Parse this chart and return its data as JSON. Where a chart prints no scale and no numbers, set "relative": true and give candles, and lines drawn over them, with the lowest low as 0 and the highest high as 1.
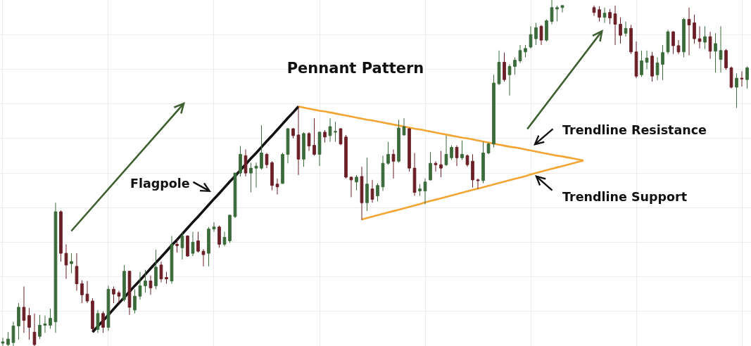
{
  "chart_data": {
    "type": "candlestick",
    "title": "Pennant Pattern",
    "annotations": [
      "Flagpole",
      "Trendline Resistance",
      "Trendline Support"
    ],
    "relative": true,
    "grid": true,
    "categories": [
      null,
      null,
      null,
      null,
      null,
      null,
      null,
      null,
      null,
      null,
      null,
      null,
      null,
      null,
      null,
      null,
      null,
      null,
      null,
      null,
      null,
      null,
      null,
      null,
      null,
      null,
      null,
      null,
      null,
      null,
      null,
      null,
      null,
      null,
      null,
      null,
      null,
      null,
      null,
      null,
      null,
      null,
      null,
      null,
      null,
      null,
      null,
      null,
      null,
      null,
      null,
      null,
      null,
      null,
      null,
      null,
      null,
      null,
      null,
      null,
      null,
      null,
      null,
      null,
      null,
      null,
      null,
      null,
      null,
      null,
      null,
      null,
      null,
      null,
      null,
      null,
      null,
      null,
      null,
      null,
      null,
      null,
      null,
      null,
      null,
      null,
      null,
      null,
      null,
      null,
      null,
      null,
      null,
      null,
      null,
      null,
      null,
      null,
      null,
      null,
      null,
      null,
      null,
      null,
      null,
      null,
      null,
      null,
      null,
      null,
      null,
      null,
      null,
      null,
      null,
      null,
      null,
      null,
      null,
      null,
      null,
      null,
      null,
      null,
      null,
      null,
      null,
      null,
      null,
      null,
      null,
      null,
      null,
      null,
      null,
      null,
      null,
      null,
      null,
      null,
      null,
      null
    ],
    "ohlc": [
      [
        0.008,
        0.024,
        0,
        0.012
      ],
      [
        0.004,
        0.04,
        0,
        0.02
      ],
      [
        0.01,
        0.07,
        0,
        0.058
      ],
      [
        0.058,
        0.124,
        0.018,
        0.112
      ],
      [
        0.112,
        0.172,
        0.038,
        0.074
      ],
      [
        0.088,
        0.11,
        0.018,
        0.054
      ],
      [
        0.04,
        0.094,
        0,
        0.004
      ],
      [
        0.028,
        0.09,
        0.02,
        0.06
      ],
      [
        0.06,
        0.088,
        0.038,
        0.064
      ],
      [
        0.06,
        0.108,
        0.05,
        0.08
      ],
      [
        0.07,
        0.414,
        0.038,
        0.388
      ],
      [
        0.388,
        0.392,
        0.244,
        0.268
      ],
      [
        0.268,
        0.294,
        0.194,
        0.234
      ],
      [
        0.238,
        0.268,
        0.21,
        0.244
      ],
      [
        0.23,
        0.268,
        0.16,
        0.18
      ],
      [
        0.18,
        0.19,
        0.124,
        0.148
      ],
      [
        0.15,
        0.188,
        0.124,
        0.13
      ],
      [
        0.13,
        0.138,
        0.044,
        0.05
      ],
      [
        0.048,
        0.104,
        0.038,
        0.094
      ],
      [
        0.094,
        0.1,
        0.038,
        0.054
      ],
      [
        0.054,
        0.174,
        0.044,
        0.164
      ],
      [
        0.164,
        0.172,
        0.124,
        0.15
      ],
      [
        0.154,
        0.16,
        0.124,
        0.144
      ],
      [
        0.134,
        0.234,
        0.128,
        0.216
      ],
      [
        0.216,
        0.218,
        0.09,
        0.112
      ],
      [
        0.104,
        0.164,
        0.094,
        0.144
      ],
      [
        0.144,
        0.214,
        0.134,
        0.174
      ],
      [
        0.174,
        0.22,
        0.154,
        0.188
      ],
      [
        0.188,
        0.204,
        0.148,
        0.168
      ],
      [
        0.174,
        0.278,
        0.164,
        0.228
      ],
      [
        0.234,
        0.244,
        0.184,
        0.194
      ],
      [
        0.198,
        0.214,
        0.18,
        0.194
      ],
      [
        0.188,
        0.318,
        0.18,
        0.294
      ],
      [
        0.294,
        0.31,
        0.27,
        0.29
      ],
      [
        0.284,
        0.328,
        0.25,
        0.318
      ],
      [
        0.318,
        0.32,
        0.258,
        0.26
      ],
      [
        0.268,
        0.33,
        0.26,
        0.3
      ],
      [
        0.304,
        0.33,
        0.27,
        0.274
      ],
      [
        0.274,
        0.28,
        0.23,
        0.264
      ],
      [
        0.268,
        0.344,
        0.23,
        0.338
      ],
      [
        0.338,
        0.358,
        0.33,
        0.344
      ],
      [
        0.344,
        0.348,
        0.284,
        0.294
      ],
      [
        0.294,
        0.33,
        0.288,
        0.314
      ],
      [
        0.304,
        0.38,
        0.298,
        0.378
      ],
      [
        0.374,
        0.5,
        0.37,
        0.5
      ],
      [
        0.5,
        0.578,
        0.49,
        0.554
      ],
      [
        0.55,
        0.568,
        0.49,
        0.5
      ],
      [
        0.5,
        0.53,
        0.444,
        0.514
      ],
      [
        0.514,
        0.53,
        0.458,
        0.52
      ],
      [
        0.514,
        0.638,
        0.51,
        0.558
      ],
      [
        0.554,
        0.558,
        0.514,
        0.524
      ],
      [
        0.53,
        0.534,
        0.45,
        0.464
      ],
      [
        0.468,
        0.484,
        0.438,
        0.46
      ],
      [
        0.47,
        0.558,
        0.468,
        0.554
      ],
      [
        0.554,
        0.63,
        0.528,
        0.628
      ],
      [
        0.628,
        0.63,
        0.6,
        0.608
      ],
      [
        0.61,
        0.694,
        0.494,
        0.54
      ],
      [
        0.54,
        0.618,
        0.518,
        0.614
      ],
      [
        0.614,
        0.618,
        0.564,
        0.578
      ],
      [
        0.58,
        0.658,
        0.55,
        0.554
      ],
      [
        0.554,
        0.62,
        0.52,
        0.618
      ],
      [
        0.618,
        0.624,
        0.588,
        0.604
      ],
      [
        0.608,
        0.658,
        0.59,
        0.634
      ],
      [
        0.618,
        0.648,
        0.59,
        0.62
      ],
      [
        0.628,
        0.63,
        0.58,
        0.584
      ],
      [
        0.604,
        0.61,
        0.484,
        0.488
      ],
      [
        0.488,
        0.49,
        0.43,
        0.48
      ],
      [
        0.474,
        0.494,
        0.45,
        0.488
      ],
      [
        0.49,
        0.518,
        0.364,
        0.414
      ],
      [
        0.414,
        0.544,
        0.39,
        0.468
      ],
      [
        0.454,
        0.48,
        0.414,
        0.424
      ],
      [
        0.434,
        0.47,
        0.418,
        0.464
      ],
      [
        0.46,
        0.55,
        0.448,
        0.528
      ],
      [
        0.528,
        0.59,
        0.524,
        0.554
      ],
      [
        0.554,
        0.568,
        0.484,
        0.534
      ],
      [
        0.534,
        0.654,
        0.53,
        0.63
      ],
      [
        0.61,
        0.658,
        0.608,
        0.634
      ],
      [
        0.628,
        0.63,
        0.504,
        0.514
      ],
      [
        0.514,
        0.558,
        0.434,
        0.444
      ],
      [
        0.448,
        0.468,
        0.434,
        0.454
      ],
      [
        0.448,
        0.484,
        0.41,
        0.474
      ],
      [
        0.48,
        0.56,
        0.478,
        0.528
      ],
      [
        0.528,
        0.534,
        0.504,
        0.524
      ],
      [
        0.524,
        0.564,
        0.488,
        0.514
      ],
      [
        0.524,
        0.608,
        0.52,
        0.554
      ],
      [
        0.544,
        0.58,
        0.538,
        0.574
      ],
      [
        0.574,
        0.58,
        0.52,
        0.544
      ],
      [
        0.544,
        0.594,
        0.538,
        0.554
      ],
      [
        0.55,
        0.554,
        0.518,
        0.524
      ],
      [
        0.534,
        0.554,
        0.458,
        0.48
      ],
      [
        0.48,
        0.484,
        0.454,
        0.478
      ],
      [
        0.478,
        0.59,
        0.47,
        0.558
      ],
      [
        0.558,
        0.588,
        0.554,
        0.584
      ],
      [
        0.584,
        0.784,
        0.574,
        0.76
      ],
      [
        0.758,
        0.854,
        0.754,
        0.82
      ],
      [
        0.82,
        0.848,
        0.764,
        0.77
      ],
      [
        0.784,
        0.814,
        0.724,
        0.808
      ],
      [
        0.808,
        0.834,
        0.784,
        0.826
      ],
      [
        0.824,
        0.87,
        0.818,
        0.854
      ],
      [
        0.85,
        0.87,
        0.834,
        0.86
      ],
      [
        0.864,
        0.924,
        0.86,
        0.9
      ],
      [
        0.888,
        0.934,
        0.87,
        0.92
      ],
      [
        0.924,
        0.928,
        0.87,
        0.884
      ],
      [
        0.884,
        0.944,
        0.88,
        0.94
      ],
      [
        0.938,
        1,
        0.93,
        0.978
      ],
      [
        0.974,
        0.984,
        0.938,
        0.978
      ],
      [
        0.978,
        0.984,
        0.964,
        0.984
      ],
      null,
      null,
      null,
      null,
      null,
      [
        0.978,
        0.984,
        0.954,
        0.964
      ],
      [
        0.972,
        0.982,
        0.938,
        0.95
      ],
      [
        0.95,
        0.978,
        0.934,
        0.962
      ],
      [
        0.964,
        0.974,
        0.93,
        0.948
      ],
      [
        0.96,
        0.984,
        0.87,
        0.93
      ],
      [
        0.93,
        0.95,
        0.874,
        0.898
      ],
      [
        0.904,
        0.938,
        0.894,
        0.918
      ],
      [
        0.918,
        0.928,
        0.844,
        0.85
      ],
      [
        0.85,
        0.88,
        0.774,
        0.78
      ],
      [
        0.784,
        0.854,
        0.778,
        0.824
      ],
      [
        0.82,
        0.854,
        0.8,
        0.832
      ],
      [
        0.838,
        0.85,
        0.764,
        0.78
      ],
      [
        0.784,
        0.834,
        0.768,
        0.818
      ],
      [
        0.814,
        0.87,
        0.768,
        0.848
      ],
      [
        0.85,
        0.914,
        0.844,
        0.908
      ],
      [
        0.908,
        0.91,
        0.844,
        0.868
      ],
      [
        0.868,
        0.884,
        0.844,
        0.85
      ],
      [
        0.85,
        0.948,
        0.834,
        0.944
      ],
      [
        0.944,
        0.978,
        0.84,
        0.928
      ],
      [
        0.934,
        0.958,
        0.874,
        0.888
      ],
      [
        0.888,
        0.924,
        0.86,
        0.88
      ],
      [
        0.878,
        0.924,
        0.858,
        0.894
      ],
      [
        0.894,
        0.908,
        0.83,
        0.852
      ],
      [
        0.852,
        0.904,
        0.79,
        0.874
      ],
      [
        0.828,
        0.924,
        0.79,
        0.854
      ],
      [
        0.854,
        0.858,
        0.798,
        0.804
      ],
      [
        0.804,
        0.808,
        0.744,
        0.748
      ],
      [
        0.748,
        0.788,
        0.688,
        0.774
      ],
      [
        0.774,
        0.794,
        0.75,
        0.772
      ],
      [
        0.77,
        0.808,
        0.744,
        0.804
      ]
    ],
    "colors": [
      "#3b6b3b",
      "#3b6b3b",
      "#3b6b3b",
      "#3b6b3b",
      "#6b1f26",
      "#6b1f26",
      "#6b1f26",
      "#3b6b3b",
      "#3b6b3b",
      "#3b6b3b",
      "#3b6b3b",
      "#6b1f26",
      "#6b1f26",
      "#3b6b3b",
      "#6b1f26",
      "#6b1f26",
      "#6b1f26",
      "#6b1f26",
      "#3b6b3b",
      "#6b1f26",
      "#3b6b3b",
      "#6b1f26",
      "#6b1f26",
      "#3b6b3b",
      "#6b1f26",
      "#3b6b3b",
      "#3b6b3b",
      "#3b6b3b",
      "#6b1f26",
      "#3b6b3b",
      "#6b1f26",
      "#6b1f26",
      "#3b6b3b",
      "#6b1f26",
      "#3b6b3b",
      "#6b1f26",
      "#3b6b3b",
      "#6b1f26",
      "#6b1f26",
      "#3b6b3b",
      "#3b6b3b",
      "#6b1f26",
      "#3b6b3b",
      "#3b6b3b",
      "#3b6b3b",
      "#3b6b3b",
      "#6b1f26",
      "#3b6b3b",
      "#3b6b3b",
      "#3b6b3b",
      "#6b1f26",
      "#6b1f26",
      "#6b1f26",
      "#3b6b3b",
      "#3b6b3b",
      "#6b1f26",
      "#6b1f26",
      "#3b6b3b",
      "#6b1f26",
      "#6b1f26",
      "#3b6b3b",
      "#6b1f26",
      "#3b6b3b",
      "#3b6b3b",
      "#6b1f26",
      "#6b1f26",
      "#6b1f26",
      "#3b6b3b",
      "#6b1f26",
      "#3b6b3b",
      "#6b1f26",
      "#3b6b3b",
      "#3b6b3b",
      "#3b6b3b",
      "#6b1f26",
      "#3b6b3b",
      "#3b6b3b",
      "#6b1f26",
      "#6b1f26",
      "#3b6b3b",
      "#3b6b3b",
      "#3b6b3b",
      "#6b1f26",
      "#6b1f26",
      "#3b6b3b",
      "#3b6b3b",
      "#6b1f26",
      "#3b6b3b",
      "#6b1f26",
      "#6b1f26",
      "#6b1f26",
      "#3b6b3b",
      "#3b6b3b",
      "#3b6b3b",
      "#3b6b3b",
      "#6b1f26",
      "#3b6b3b",
      "#3b6b3b",
      "#3b6b3b",
      "#3b6b3b",
      "#3b6b3b",
      "#3b6b3b",
      "#6b1f26",
      "#3b6b3b",
      "#3b6b3b",
      "#3b6b3b",
      "#3b6b3b",
      null,
      null,
      null,
      null,
      null,
      "#6b1f26",
      "#6b1f26",
      "#3b6b3b",
      "#6b1f26",
      "#6b1f26",
      "#6b1f26",
      "#3b6b3b",
      "#6b1f26",
      "#6b1f26",
      "#3b6b3b",
      "#3b6b3b",
      "#6b1f26",
      "#3b6b3b",
      "#3b6b3b",
      "#3b6b3b",
      "#6b1f26",
      "#6b1f26",
      "#3b6b3b",
      "#6b1f26",
      "#6b1f26",
      "#6b1f26",
      "#3b6b3b",
      "#6b1f26",
      "#3b6b3b",
      "#3b6b3b",
      "#6b1f26",
      "#6b1f26",
      "#3b6b3b",
      "#6b1f26",
      "#3b6b3b"
    ],
    "series": [
      {
        "type": "line",
        "color": "#111111",
        "values": [
          null,
          null,
          null,
          null,
          null,
          null,
          null,
          null,
          null,
          null,
          null,
          null,
          null,
          null,
          null,
          null,
          null,
          0.04,
          0.057,
          0.073,
          0.09,
          0.107,
          0.124,
          0.14,
          0.157,
          0.174,
          0.19,
          0.207,
          0.224,
          0.241,
          0.257,
          0.274,
          0.291,
          0.307,
          0.324,
          0.341,
          0.358,
          0.374,
          0.391,
          0.408,
          0.425,
          0.441,
          0.458,
          0.475,
          0.491,
          0.508,
          0.525,
          0.542,
          0.558,
          0.575,
          0.592,
          0.608,
          0.625,
          0.642,
          0.659,
          0.675,
          0.692,
          null,
          null,
          null,
          null,
          null,
          null,
          null,
          null,
          null,
          null,
          null,
          null,
          null,
          null,
          null,
          null,
          null,
          null,
          null,
          null,
          null,
          null,
          null,
          null,
          null,
          null,
          null,
          null,
          null,
          null,
          null,
          null,
          null,
          null,
          null,
          null,
          null,
          null,
          null,
          null,
          null,
          null,
          null,
          null,
          null,
          null,
          null,
          null,
          null,
          null,
          null,
          null,
          null,
          null,
          null,
          null,
          null,
          null,
          null,
          null,
          null,
          null,
          null,
          null,
          null,
          null,
          null,
          null,
          null,
          null,
          null,
          null,
          null,
          null,
          null,
          null,
          null,
          null,
          null,
          null,
          null,
          null,
          null,
          null,
          null
        ]
      },
      {
        "type": "line",
        "color": "#f3a533",
        "values": [
          null,
          null,
          null,
          null,
          null,
          null,
          null,
          null,
          null,
          null,
          null,
          null,
          null,
          null,
          null,
          null,
          null,
          null,
          null,
          null,
          null,
          null,
          null,
          null,
          null,
          null,
          null,
          null,
          null,
          null,
          null,
          null,
          null,
          null,
          null,
          null,
          null,
          null,
          null,
          null,
          null,
          null,
          null,
          null,
          null,
          null,
          null,
          null,
          null,
          null,
          null,
          null,
          null,
          null,
          null,
          null,
          0.692,
          0.689,
          0.686,
          0.683,
          0.68,
          0.678,
          0.675,
          0.672,
          0.669,
          0.666,
          0.663,
          0.66,
          0.657,
          0.654,
          0.652,
          0.649,
          0.646,
          0.643,
          0.64,
          0.637,
          0.634,
          0.631,
          0.628,
          0.626,
          0.623,
          0.62,
          0.617,
          0.614,
          0.611,
          0.608,
          0.605,
          0.602,
          0.6,
          0.597,
          0.594,
          0.591,
          0.588,
          0.585,
          0.582,
          0.579,
          0.576,
          0.574,
          0.571,
          0.568,
          0.565,
          0.562,
          0.559,
          0.556,
          0.553,
          0.55,
          0.548,
          0.545,
          0.542,
          0.539,
          0.536,
          null,
          null,
          null,
          null,
          null,
          null,
          null,
          null,
          null,
          null,
          null,
          null,
          null,
          null,
          null,
          null,
          null,
          null,
          null,
          null,
          null,
          null,
          null,
          null,
          null,
          null,
          null,
          null,
          null,
          null,
          null
        ]
      },
      {
        "type": "line",
        "color": "#f3a533",
        "values": [
          null,
          null,
          null,
          null,
          null,
          null,
          null,
          null,
          null,
          null,
          null,
          null,
          null,
          null,
          null,
          null,
          null,
          null,
          null,
          null,
          null,
          null,
          null,
          null,
          null,
          null,
          null,
          null,
          null,
          null,
          null,
          null,
          null,
          null,
          null,
          null,
          null,
          null,
          null,
          null,
          null,
          null,
          null,
          null,
          null,
          null,
          null,
          null,
          null,
          null,
          null,
          null,
          null,
          null,
          null,
          null,
          null,
          null,
          null,
          null,
          null,
          null,
          null,
          null,
          null,
          null,
          null,
          null,
          0.366,
          0.37,
          0.374,
          0.378,
          0.382,
          0.386,
          0.39,
          0.394,
          0.398,
          0.402,
          0.406,
          0.41,
          0.415,
          0.419,
          0.423,
          0.427,
          0.431,
          0.435,
          0.439,
          0.443,
          0.447,
          0.451,
          0.455,
          0.459,
          0.463,
          0.467,
          0.471,
          0.475,
          0.479,
          0.483,
          0.487,
          0.491,
          0.496,
          0.5,
          0.504,
          0.508,
          0.512,
          0.516,
          0.52,
          0.524,
          0.528,
          0.532,
          0.536,
          null,
          null,
          null,
          null,
          null,
          null,
          null,
          null,
          null,
          null,
          null,
          null,
          null,
          null,
          null,
          null,
          null,
          null,
          null,
          null,
          null,
          null,
          null,
          null,
          null,
          null,
          null,
          null,
          null,
          null,
          null
        ]
      }
    ]
  }
}
